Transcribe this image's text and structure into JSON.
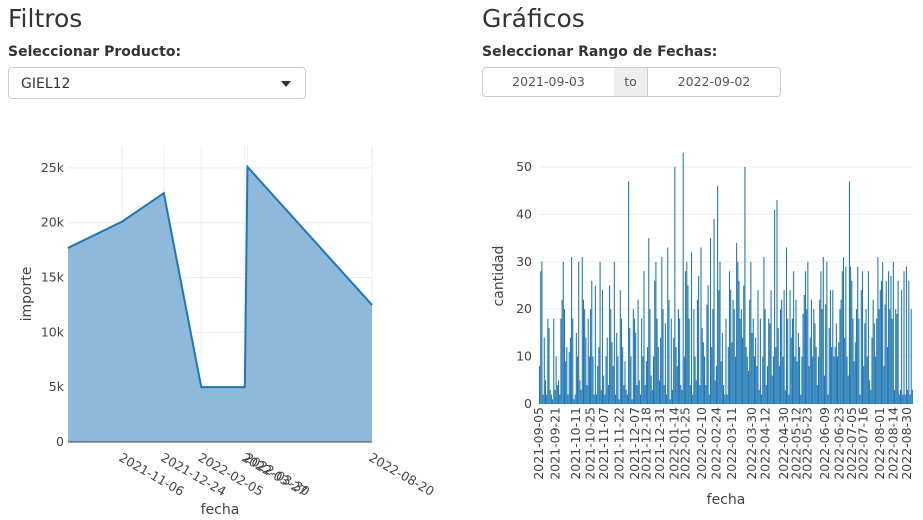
{
  "filters": {
    "title": "Filtros",
    "product_label": "Seleccionar Producto:",
    "product_value": "GIEL12"
  },
  "graphs": {
    "title": "Gráficos",
    "date_label": "Seleccionar Rango de Fechas:",
    "date_start": "2021-09-03",
    "date_sep": "to",
    "date_end": "2022-09-02"
  },
  "chart_data": [
    {
      "type": "area",
      "xlabel": "fecha",
      "ylabel": "importe",
      "x": [
        "2021-09-05",
        "2021-11-06",
        "2021-12-24",
        "2022-02-05",
        "2022-03-27",
        "2022-03-30",
        "2022-08-20"
      ],
      "values": [
        17700,
        20100,
        22700,
        5000,
        5000,
        25100,
        12500
      ],
      "ylim": [
        0,
        27000
      ],
      "x_ticks": [
        "2021-11-06",
        "2021-12-24",
        "2022-02-05",
        "2022-03-27",
        "2022-03-30",
        "2022-08-20"
      ],
      "y_ticks": [
        0,
        5000,
        10000,
        15000,
        20000,
        25000
      ],
      "y_tick_labels": [
        "0",
        "5k",
        "10k",
        "15k",
        "20k",
        "25k"
      ],
      "colors": {
        "fill": "#8fb9da",
        "line": "#1f77b4",
        "grid": "#eeeeee"
      },
      "grid": true
    },
    {
      "type": "bar",
      "xlabel": "fecha",
      "ylabel": "cantidad",
      "x_range": [
        "2021-09-05",
        "2022-09-02"
      ],
      "ylim": [
        0,
        54
      ],
      "y_ticks": [
        0,
        10,
        20,
        30,
        40,
        50
      ],
      "x_ticks": [
        "2021-09-05",
        "2021-09-21",
        "2021-10-11",
        "2021-10-25",
        "2021-11-07",
        "2021-11-22",
        "2021-12-07",
        "2021-12-18",
        "2021-12-31",
        "2022-01-14",
        "2022-01-25",
        "2022-02-10",
        "2022-02-24",
        "2022-03-11",
        "2022-03-30",
        "2022-04-12",
        "2022-04-30",
        "2022-05-12",
        "2022-05-23",
        "2022-06-09",
        "2022-06-23",
        "2022-07-05",
        "2022-07-16",
        "2022-08-01",
        "2022-08-14",
        "2022-08-30"
      ],
      "values": [
        8,
        28,
        30,
        2,
        14,
        5,
        2,
        18,
        16,
        3,
        2,
        1,
        18,
        3,
        10,
        4,
        5,
        2,
        18,
        22,
        30,
        20,
        9,
        12,
        2,
        11,
        14,
        31,
        18,
        1,
        2,
        15,
        10,
        30,
        5,
        3,
        31,
        22,
        20,
        14,
        4,
        18,
        10,
        20,
        26,
        10,
        2,
        25,
        2,
        8,
        12,
        30,
        3,
        24,
        6,
        2,
        10,
        14,
        4,
        25,
        20,
        13,
        8,
        30,
        2,
        15,
        10,
        1,
        24,
        18,
        12,
        4,
        9,
        3,
        2,
        47,
        16,
        10,
        1,
        20,
        18,
        15,
        4,
        22,
        5,
        2,
        18,
        10,
        28,
        4,
        9,
        12,
        35,
        20,
        6,
        3,
        10,
        26,
        30,
        18,
        12,
        5,
        14,
        31,
        20,
        4,
        17,
        2,
        33,
        22,
        1,
        18,
        3,
        14,
        50,
        12,
        8,
        20,
        18,
        4,
        3,
        53,
        10,
        28,
        30,
        25,
        18,
        4,
        32,
        2,
        20,
        10,
        5,
        22,
        27,
        4,
        33,
        16,
        13,
        10,
        4,
        21,
        25,
        2,
        35,
        12,
        20,
        39,
        5,
        8,
        46,
        24,
        30,
        9,
        15,
        4,
        2,
        18,
        2,
        12,
        28,
        24,
        13,
        22,
        20,
        10,
        34,
        30,
        26,
        18,
        20,
        14,
        25,
        50,
        12,
        10,
        7,
        22,
        30,
        15,
        18,
        10,
        14,
        8,
        24,
        3,
        18,
        2,
        10,
        31,
        20,
        4,
        8,
        18,
        17,
        24,
        6,
        10,
        41,
        12,
        43,
        16,
        8,
        20,
        22,
        10,
        24,
        3,
        33,
        18,
        2,
        24,
        14,
        18,
        28,
        10,
        22,
        9,
        15,
        12,
        2,
        10,
        19,
        23,
        28,
        20,
        30,
        8,
        14,
        22,
        10,
        20,
        17,
        12,
        4,
        10,
        22,
        28,
        20,
        31,
        6,
        21,
        30,
        2,
        16,
        24,
        12,
        24,
        10,
        12,
        17,
        10,
        13,
        20,
        22,
        28,
        31,
        14,
        29,
        10,
        6,
        47,
        29,
        26,
        18,
        9,
        13,
        20,
        29,
        18,
        2,
        24,
        28,
        8,
        17,
        20,
        10,
        28,
        5,
        3,
        14,
        22,
        17,
        10,
        18,
        31,
        20,
        24,
        26,
        30,
        8,
        21,
        26,
        12,
        28,
        20,
        27,
        18,
        30,
        3,
        20,
        19,
        26,
        2,
        3,
        24,
        2,
        28,
        2,
        29,
        3,
        26,
        2,
        20,
        3
      ],
      "colors": {
        "bar": "#1f77b4",
        "grid": "#eeeeee"
      },
      "grid": true
    }
  ]
}
